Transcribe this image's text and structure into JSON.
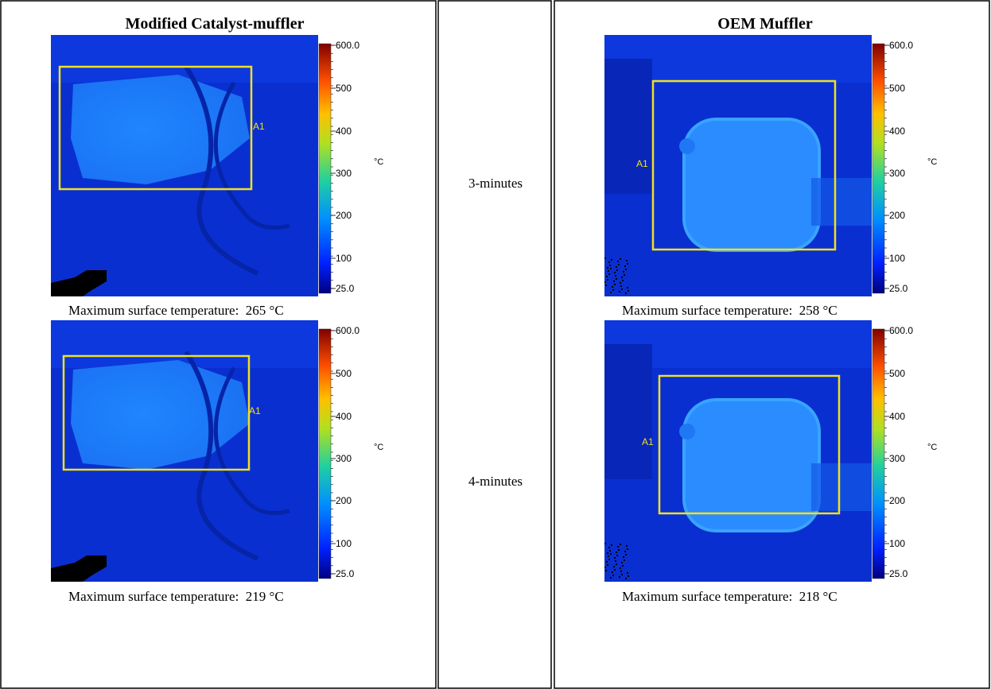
{
  "table": {
    "columns": [
      {
        "header": "Modified Catalyst-muffler",
        "images": [
          {
            "roi_label": "A1",
            "caption": "Maximum surface temperature:  265 °C"
          },
          {
            "roi_label": "A1",
            "caption": "Maximum surface temperature:  219 °C"
          }
        ]
      },
      {
        "header": "OEM Muffler",
        "images": [
          {
            "roi_label": "A1",
            "caption": "Maximum surface temperature:  258 °C"
          },
          {
            "roi_label": "A1",
            "caption": "Maximum surface temperature:  218 °C"
          }
        ]
      }
    ],
    "times": [
      "3-minutes",
      "4-minutes"
    ]
  },
  "colorbar": {
    "ticks": [
      "600.0",
      "500",
      "400",
      "300",
      "200",
      "100",
      "25.0"
    ],
    "unit": "°C"
  }
}
